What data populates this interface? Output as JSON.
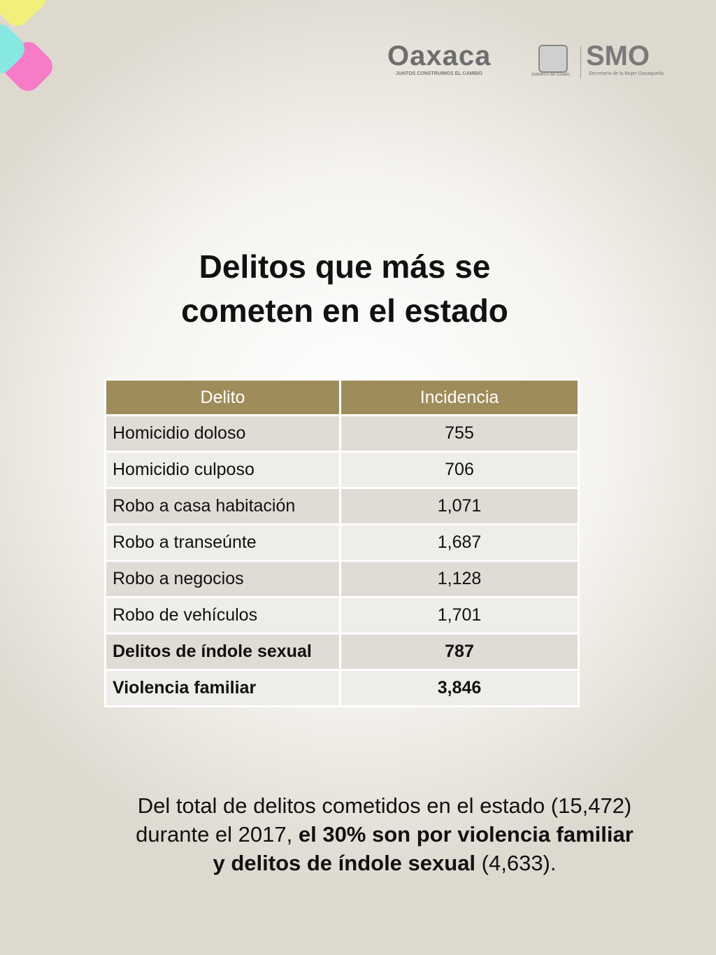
{
  "header": {
    "brand": "Oaxaca",
    "slogan": "JUNTOS CONSTRUIMOS EL CAMBIO",
    "government": "Gobierno del Estado",
    "agency": "SMO",
    "agency_name": "Secretaría de la Mujer Oaxaqueña"
  },
  "title": [
    "Delitos que más se",
    "cometen en el estado"
  ],
  "table": {
    "columns": [
      "Delito",
      "Incidencia"
    ],
    "rows": [
      [
        "Homicidio doloso",
        "755"
      ],
      [
        "Homicidio culposo",
        "706"
      ],
      [
        "Robo a casa habitación",
        "1,071"
      ],
      [
        "Robo a transeúnte",
        "1,687"
      ],
      [
        "Robo a negocios",
        "1,128"
      ],
      [
        "Robo de vehículos",
        "1,701"
      ],
      [
        "Delitos de índole sexual",
        "787"
      ],
      [
        "Violencia familiar",
        "3,846"
      ]
    ]
  },
  "summary": {
    "lines": [
      [
        {
          "text": "Del total de delitos cometidos en el estado (15,472)",
          "bold": false
        }
      ],
      [
        {
          "text": "durante el 2017, ",
          "bold": false
        },
        {
          "text": "el 30% son por violencia familiar",
          "bold": true
        }
      ],
      [
        {
          "text": "y delitos de índole sexual",
          "bold": true
        },
        {
          "text": " (4,633).",
          "bold": false
        }
      ]
    ]
  }
}
